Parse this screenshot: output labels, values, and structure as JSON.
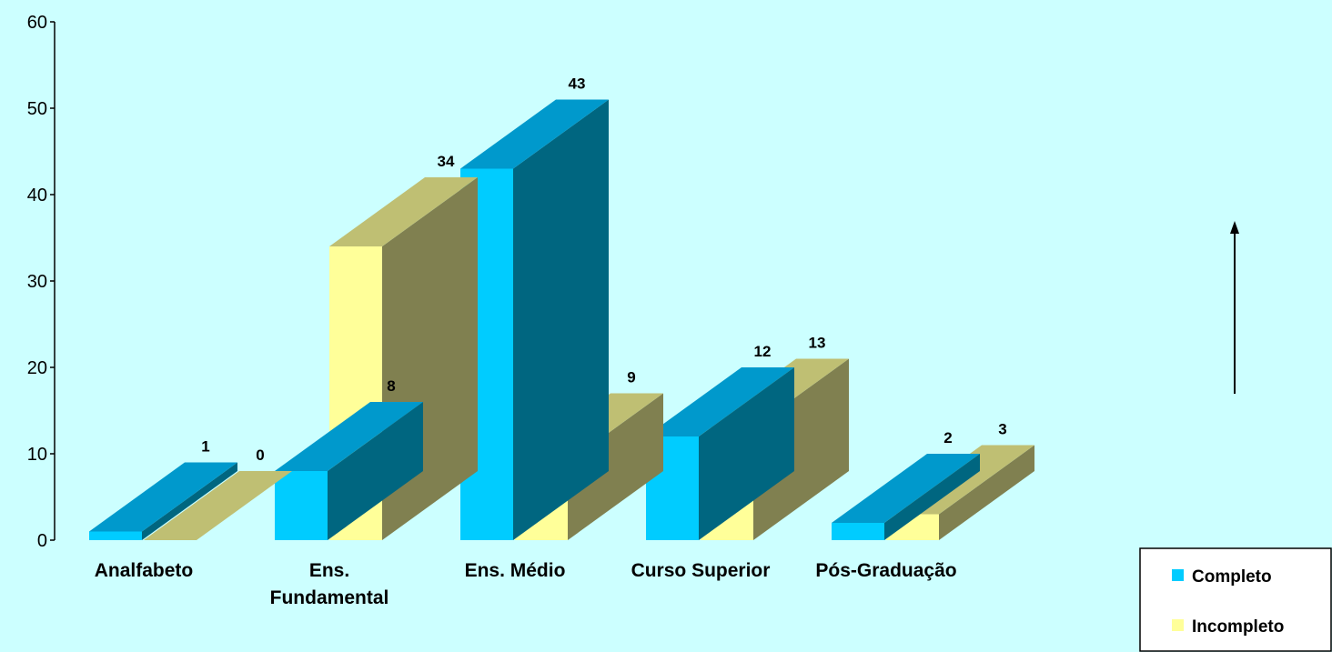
{
  "chart_data": {
    "type": "bar",
    "categories": [
      "Analfabeto",
      "Ens. Fundamental",
      "Ens. Médio",
      "Curso Superior",
      "Pós-Graduação"
    ],
    "series": [
      {
        "name": "Completo",
        "values": [
          1,
          8,
          43,
          12,
          2
        ]
      },
      {
        "name": "Incompleto",
        "values": [
          0,
          34,
          9,
          13,
          3
        ]
      }
    ],
    "ylim": [
      0,
      60
    ],
    "yticks": [
      "0",
      "10",
      "20",
      "30",
      "40",
      "50",
      "60"
    ],
    "category_labels": [
      [
        "Analfabeto"
      ],
      [
        "Ens.",
        "Fundamental"
      ],
      [
        "Ens. Médio"
      ],
      [
        "Curso Superior"
      ],
      [
        "Pós-Graduação"
      ]
    ],
    "legend_position": "bottom-right",
    "grid": false,
    "three_d": true,
    "colors": {
      "background": "#ccffff",
      "completo_front": "#00ccff",
      "completo_top": "#0099cc",
      "completo_side": "#006680",
      "incompleto_front": "#ffff99",
      "incompleto_top": "#bfbf73",
      "incompleto_side": "#808050"
    }
  }
}
